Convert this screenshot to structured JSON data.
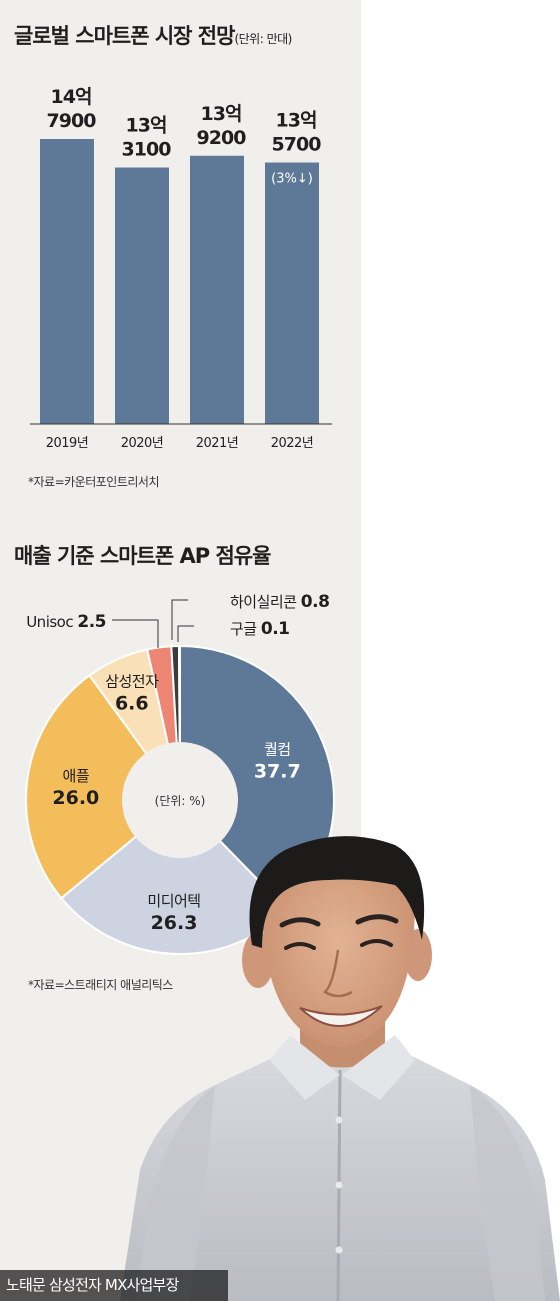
{
  "chart_data": [
    {
      "type": "bar",
      "title": "글로벌 스마트폰 시장 전망",
      "unit_note": "(단위: 만대)",
      "categories": [
        "2019년",
        "2020년",
        "2021년",
        "2022년"
      ],
      "values": [
        147900,
        133100,
        139200,
        135700
      ],
      "value_labels": [
        [
          "14억",
          "7900"
        ],
        [
          "13억",
          "3100"
        ],
        [
          "13억",
          "9200"
        ],
        [
          "13억",
          "5700"
        ]
      ],
      "annotations": [
        {
          "category": "2022년",
          "text": "(3%↓)"
        }
      ],
      "bar_color": "#5e7898",
      "source": "*자료=카운터포인트리서치"
    },
    {
      "type": "pie",
      "title": "매출 기준 스마트폰 AP 점유율",
      "unit_note": "(단위: %)",
      "labels": [
        "퀄컴",
        "미디어텍",
        "애플",
        "삼성전자",
        "Unisoc",
        "하이실리콘",
        "구글"
      ],
      "values": [
        37.7,
        26.3,
        26.0,
        6.6,
        2.5,
        0.8,
        0.1
      ],
      "value_labels": [
        "37.7",
        "26.3",
        "26.0",
        "6.6",
        "2.5",
        "0.8",
        "0.1"
      ],
      "colors": [
        "#5e7898",
        "#cdd3e1",
        "#f4bd5b",
        "#fae0b6",
        "#ec8572",
        "#3b3b3b",
        "#b0b0b0"
      ],
      "source": "*자료=스트래티지 애널리틱스"
    }
  ],
  "photo_caption": "노태문 삼성전자 MX사업부장"
}
